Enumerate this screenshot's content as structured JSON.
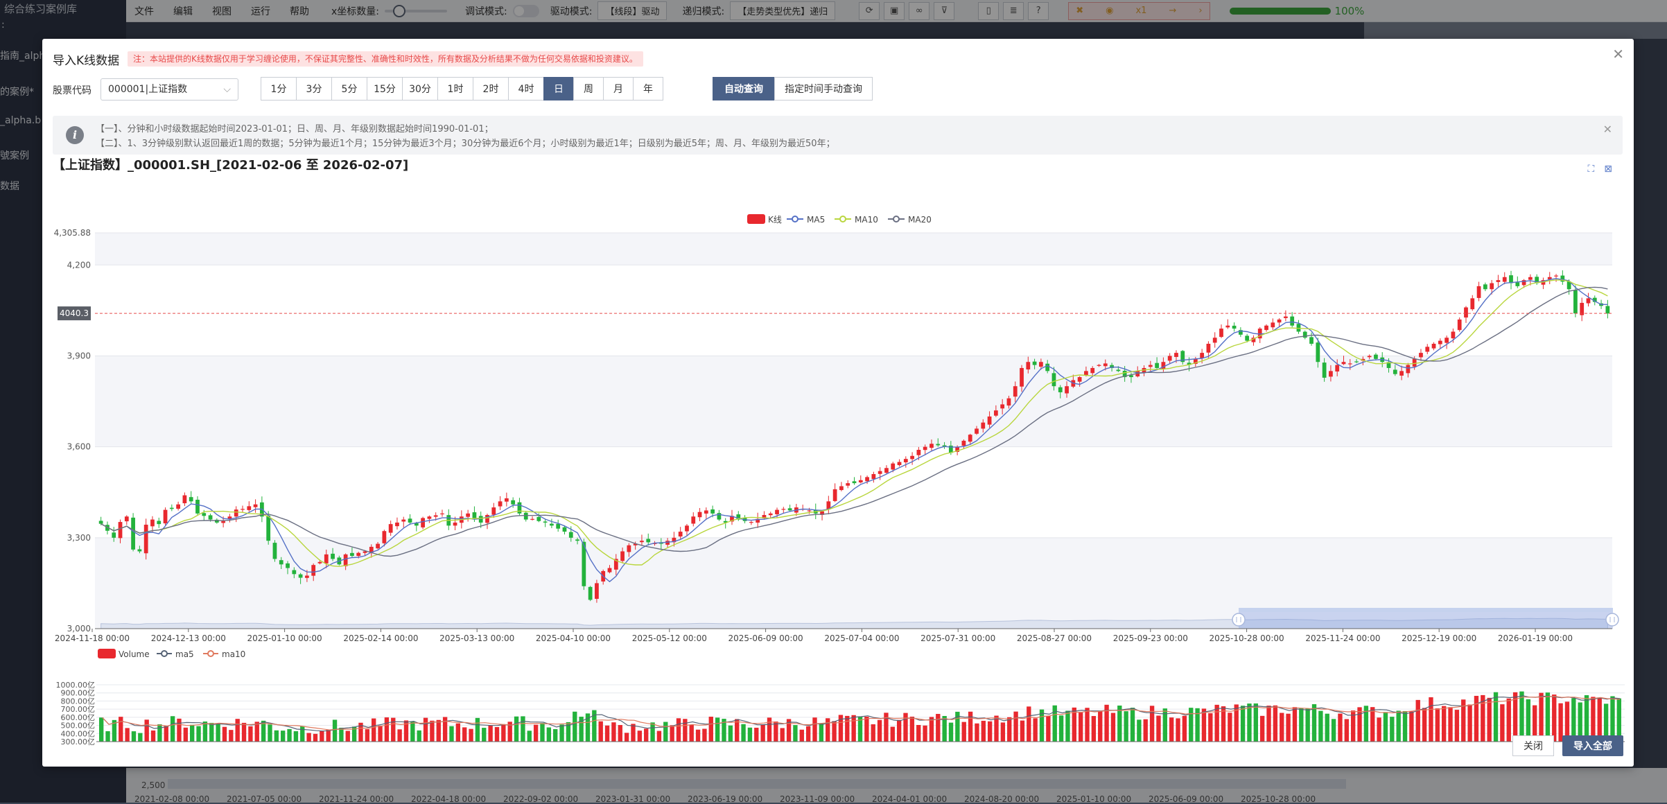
{
  "background_app": {
    "sidebar_title": "综合练习案例库",
    "sidebar_items": [
      ":",
      "指南_alph",
      "的案例*",
      "_alpha.b",
      "號案例",
      "数据"
    ],
    "menu": [
      "文件",
      "编辑",
      "视图",
      "运行",
      "帮助"
    ],
    "x_axis_count_label": "x坐标数量:",
    "debug_mode_label": "调试模式:",
    "drive_mode_label": "驱动模式:",
    "drive_mode_value": "【线段】驱动",
    "regression_mode_label": "递归模式:",
    "regression_mode_value": "【走势类型优先】递归",
    "speed_label": "x1",
    "progress_text": "100%",
    "progress_value": 1.0,
    "bottom_axis_value": "2,500",
    "bottom_axis_ticks": [
      "2021-02-08 00:00",
      "2021-07-05 00:00",
      "2021-11-24 00:00",
      "2022-04-18 00:00",
      "2022-09-02 00:00",
      "2023-01-31 00:00",
      "2023-06-19 00:00",
      "2023-11-09 00:00",
      "2024-04-01 00:00",
      "2024-08-20 00:00",
      "2025-01-10 00:00",
      "2025-06-09 00:00",
      "2025-10-28 00:00"
    ]
  },
  "modal": {
    "title": "导入K线数据",
    "disclaimer": "注：本站提供的K线数据仅用于学习缠论使用，不保证其完整性、准确性和时效性，所有数据及分析结果不做为任何交易依据和投资建议。",
    "stock_code_label": "股票代码",
    "stock_code_value": "000001|上证指数",
    "periods": [
      "1分",
      "3分",
      "5分",
      "15分",
      "30分",
      "1时",
      "2时",
      "4时",
      "日",
      "周",
      "月",
      "年"
    ],
    "active_period": "日",
    "query_buttons": [
      "自动查询",
      "指定时间手动查询"
    ],
    "active_query": "自动查询",
    "info_lines": [
      "【一】、分钟和小时级数据起始时间2023-01-01；日、周、月、年级别数据起始时间1990-01-01；",
      "【二】、1、3分钟级别默认返回最近1周的数据；5分钟为最近1个月；15分钟为最近3个月；30分钟为最近6个月；小时级别为最近1年；日级别为最近5年；周、月、年级别为最近50年；"
    ],
    "chart_title": "【上证指数】_000001.SH_[2021-02-06 至 2026-02-07]",
    "close_button": "关闭",
    "import_all_button": "导入全部"
  },
  "chart_data": [
    {
      "type": "candlestick",
      "legend": [
        "K线",
        "MA5",
        "MA10",
        "MA20"
      ],
      "legend_placement": "top-center",
      "colors": {
        "up": "#e8282e",
        "down": "#23b23c",
        "ma5": "#5470c6",
        "ma10": "#b9d63e",
        "ma20": "#6a6f82",
        "markline": "#e84a4a"
      },
      "y_ticks": [
        "4,305.88",
        "4,200",
        "3,900",
        "3,600",
        "3,300",
        "3,000"
      ],
      "ylim": [
        3000,
        4305.88
      ],
      "x_ticks": [
        "2024-11-18 00:00",
        "2024-12-13 00:00",
        "2025-01-10 00:00",
        "2025-02-14 00:00",
        "2025-03-13 00:00",
        "2025-04-10 00:00",
        "2025-05-12 00:00",
        "2025-06-09 00:00",
        "2025-07-04 00:00",
        "2025-07-31 00:00",
        "2025-08-27 00:00",
        "2025-09-23 00:00",
        "2025-10-28 00:00",
        "2025-11-24 00:00",
        "2025-12-19 00:00",
        "2026-01-19 00:00"
      ],
      "current_price_label": "4040.3",
      "current_price": 4040.3,
      "close_series": [
        3346,
        3323,
        3300,
        3352,
        3370,
        3261,
        3255,
        3343,
        3360,
        3345,
        3392,
        3395,
        3410,
        3440,
        3420,
        3380,
        3372,
        3360,
        3350,
        3355,
        3370,
        3393,
        3395,
        3404,
        3410,
        3370,
        3290,
        3230,
        3212,
        3200,
        3180,
        3168,
        3175,
        3210,
        3220,
        3245,
        3230,
        3212,
        3245,
        3240,
        3250,
        3255,
        3270,
        3280,
        3322,
        3345,
        3350,
        3360,
        3350,
        3340,
        3365,
        3370,
        3374,
        3380,
        3340,
        3350,
        3370,
        3380,
        3365,
        3350,
        3375,
        3400,
        3420,
        3430,
        3410,
        3380,
        3360,
        3362,
        3355,
        3350,
        3340,
        3330,
        3320,
        3300,
        3290,
        3140,
        3095,
        3150,
        3190,
        3200,
        3230,
        3255,
        3275,
        3280,
        3290,
        3285,
        3282,
        3280,
        3290,
        3300,
        3320,
        3340,
        3370,
        3385,
        3390,
        3380,
        3360,
        3350,
        3372,
        3360,
        3355,
        3352,
        3362,
        3375,
        3380,
        3392,
        3395,
        3390,
        3400,
        3395,
        3390,
        3380,
        3387,
        3420,
        3460,
        3470,
        3480,
        3480,
        3490,
        3500,
        3510,
        3520,
        3530,
        3545,
        3550,
        3560,
        3570,
        3590,
        3600,
        3610,
        3605,
        3600,
        3580,
        3600,
        3620,
        3640,
        3660,
        3680,
        3700,
        3720,
        3740,
        3760,
        3800,
        3860,
        3880,
        3870,
        3880,
        3850,
        3800,
        3780,
        3800,
        3820,
        3830,
        3850,
        3860,
        3870,
        3875,
        3860,
        3850,
        3830,
        3830,
        3850,
        3860,
        3870,
        3860,
        3880,
        3900,
        3910,
        3880,
        3870,
        3890,
        3910,
        3940,
        3960,
        3990,
        4000,
        3990,
        3970,
        3950,
        3960,
        3990,
        4000,
        4010,
        4020,
        4030,
        4000,
        3980,
        3960,
        3940,
        3880,
        3828,
        3850,
        3870,
        3880,
        3875,
        3880,
        3890,
        3900,
        3890,
        3880,
        3860,
        3840,
        3850,
        3870,
        3890,
        3910,
        3930,
        3940,
        3950,
        3960,
        3980,
        4020,
        4060,
        4090,
        4130,
        4120,
        4140,
        4150,
        4160,
        4140,
        4130,
        4150,
        4160,
        4140,
        4150,
        4160,
        4165,
        4145,
        4120,
        4040,
        4075,
        4090,
        4078,
        4065,
        4040
      ]
    },
    {
      "type": "bar",
      "legend": [
        "Volume",
        "ma5",
        "ma10"
      ],
      "colors": {
        "up": "#e8282e",
        "down": "#23b23c",
        "ma5": "#556275",
        "ma10": "#e07a5f"
      },
      "y_ticks": [
        "1000.00亿",
        "900.00亿",
        "800.00亿",
        "700.00亿",
        "600.00亿",
        "500.00亿",
        "400.00亿",
        "300.00亿"
      ],
      "ylim": [
        300,
        1000
      ]
    }
  ]
}
